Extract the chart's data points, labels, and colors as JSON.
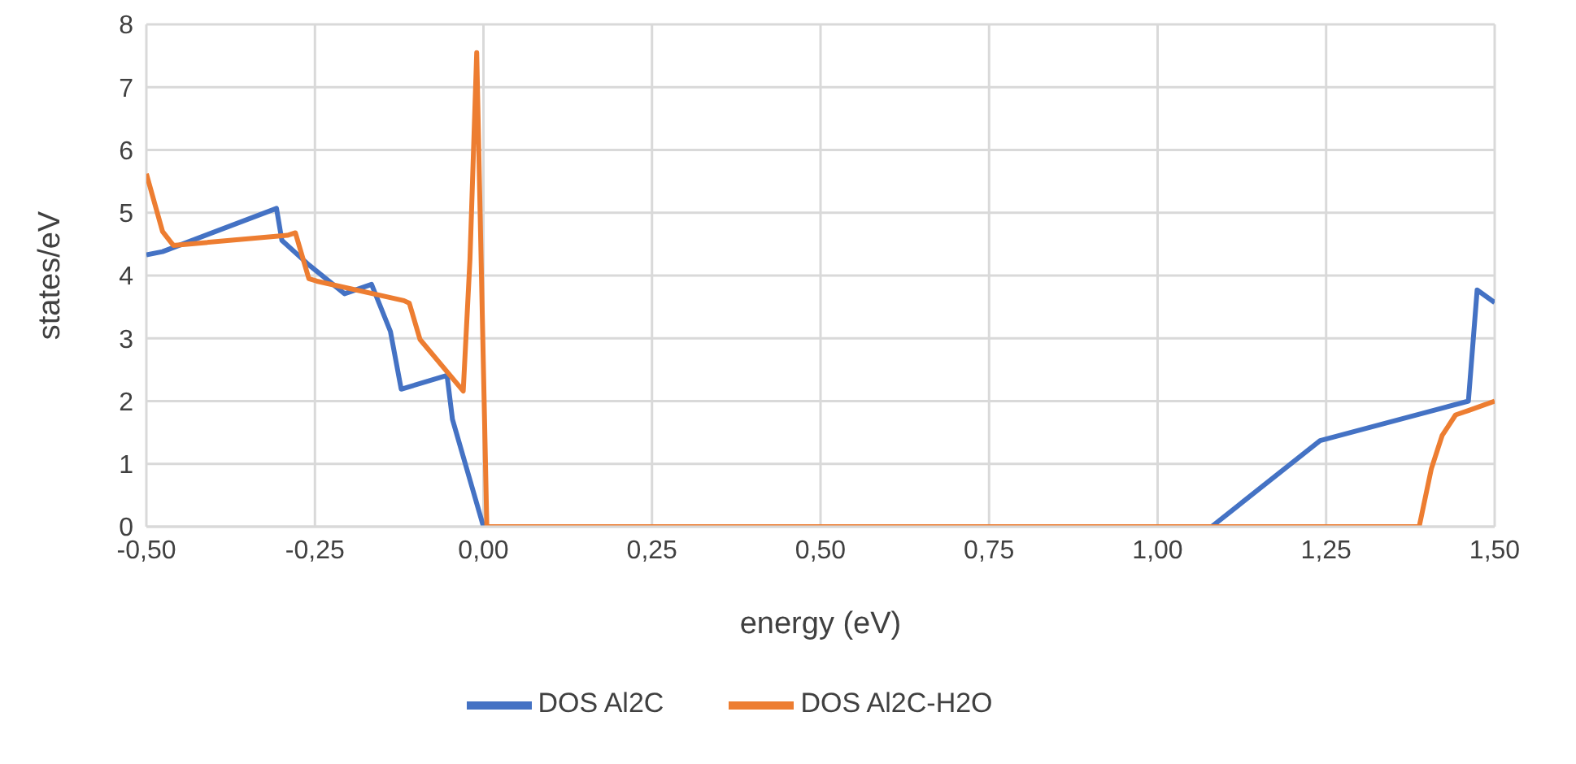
{
  "chart_data": {
    "type": "line",
    "xlabel": "energy (eV)",
    "ylabel": "states/eV",
    "xlim": [
      -0.5,
      1.5
    ],
    "ylim": [
      0,
      8
    ],
    "xticks": [
      {
        "value": -0.5,
        "label": "-0,50"
      },
      {
        "value": -0.25,
        "label": "-0,25"
      },
      {
        "value": 0,
        "label": "0,00"
      },
      {
        "value": 0.25,
        "label": "0,25"
      },
      {
        "value": 0.5,
        "label": "0,50"
      },
      {
        "value": 0.75,
        "label": "0,75"
      },
      {
        "value": 1,
        "label": "1,00"
      },
      {
        "value": 1.25,
        "label": "1,25"
      },
      {
        "value": 1.5,
        "label": "1,50"
      }
    ],
    "yticks": [
      0,
      1,
      2,
      3,
      4,
      5,
      6,
      7,
      8
    ],
    "grid": true,
    "legend": "bottom",
    "marker": "none",
    "line_style": "solid",
    "series": [
      {
        "name": "DOS Al2C",
        "color": "#4472c4",
        "x": [
          -0.5,
          -0.476,
          -0.307,
          -0.299,
          -0.259,
          -0.206,
          -0.166,
          -0.138,
          -0.122,
          -0.054,
          -0.046,
          0,
          1.08,
          1.241,
          1.461,
          1.474,
          1.5
        ],
        "values": [
          4.33,
          4.38,
          5.07,
          4.56,
          4.17,
          3.71,
          3.86,
          3.11,
          2.19,
          2.41,
          1.71,
          0,
          0,
          1.37,
          2.0,
          3.77,
          3.57
        ]
      },
      {
        "name": "DOS Al2C-H2O",
        "color": "#ed7d31",
        "x": [
          -0.5,
          -0.476,
          -0.46,
          -0.291,
          -0.279,
          -0.259,
          -0.247,
          -0.118,
          -0.11,
          -0.094,
          -0.03,
          -0.02,
          -0.01,
          0.005,
          1.388,
          1.406,
          1.422,
          1.442,
          1.461,
          1.5
        ],
        "values": [
          5.62,
          4.7,
          4.48,
          4.64,
          4.68,
          3.95,
          3.91,
          3.6,
          3.56,
          2.98,
          2.16,
          4.26,
          7.55,
          0,
          0,
          0.92,
          1.45,
          1.78,
          1.85,
          2.0
        ]
      }
    ]
  }
}
